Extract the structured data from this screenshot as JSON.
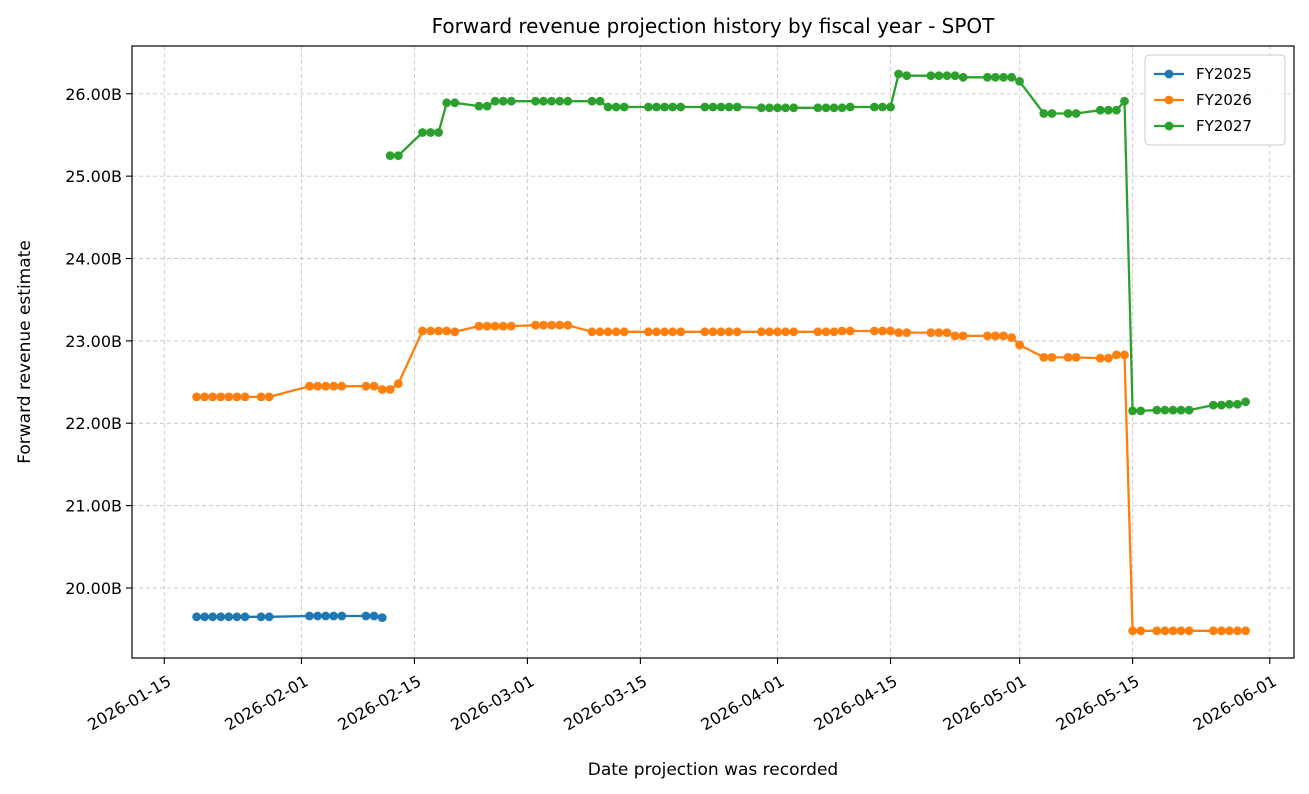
{
  "chart_data": {
    "type": "line",
    "title": "Forward revenue projection history by fiscal year - SPOT",
    "xlabel": "Date projection was recorded",
    "ylabel": "Forward revenue estimate",
    "x_axis_type": "date",
    "xlim": [
      "2026-01-11",
      "2026-06-04"
    ],
    "ylim": [
      19.15,
      26.58
    ],
    "x_ticks": [
      "2026-01-15",
      "2026-02-01",
      "2026-02-15",
      "2026-03-01",
      "2026-03-15",
      "2026-04-01",
      "2026-04-15",
      "2026-05-01",
      "2026-05-15",
      "2026-06-01"
    ],
    "y_ticks": [
      20,
      21,
      22,
      23,
      24,
      25,
      26
    ],
    "y_tick_labels": [
      "20.00B",
      "21.00B",
      "22.00B",
      "23.00B",
      "24.00B",
      "25.00B",
      "26.00B"
    ],
    "grid": true,
    "legend": "top-right",
    "series": [
      {
        "name": "FY2025",
        "color": "#1f77b4",
        "points": [
          [
            "2026-01-19",
            19.65
          ],
          [
            "2026-01-20",
            19.65
          ],
          [
            "2026-01-21",
            19.65
          ],
          [
            "2026-01-22",
            19.65
          ],
          [
            "2026-01-23",
            19.65
          ],
          [
            "2026-01-24",
            19.65
          ],
          [
            "2026-01-25",
            19.65
          ],
          [
            "2026-01-27",
            19.65
          ],
          [
            "2026-01-28",
            19.65
          ],
          [
            "2026-02-02",
            19.66
          ],
          [
            "2026-02-03",
            19.66
          ],
          [
            "2026-02-04",
            19.66
          ],
          [
            "2026-02-05",
            19.66
          ],
          [
            "2026-02-06",
            19.66
          ],
          [
            "2026-02-09",
            19.66
          ],
          [
            "2026-02-10",
            19.66
          ],
          [
            "2026-02-11",
            19.64
          ]
        ]
      },
      {
        "name": "FY2026",
        "color": "#ff7f0e",
        "points": [
          [
            "2026-01-19",
            22.32
          ],
          [
            "2026-01-20",
            22.32
          ],
          [
            "2026-01-21",
            22.32
          ],
          [
            "2026-01-22",
            22.32
          ],
          [
            "2026-01-23",
            22.32
          ],
          [
            "2026-01-24",
            22.32
          ],
          [
            "2026-01-25",
            22.32
          ],
          [
            "2026-01-27",
            22.32
          ],
          [
            "2026-01-28",
            22.32
          ],
          [
            "2026-02-02",
            22.45
          ],
          [
            "2026-02-03",
            22.45
          ],
          [
            "2026-02-04",
            22.45
          ],
          [
            "2026-02-05",
            22.45
          ],
          [
            "2026-02-06",
            22.45
          ],
          [
            "2026-02-09",
            22.45
          ],
          [
            "2026-02-10",
            22.45
          ],
          [
            "2026-02-11",
            22.41
          ],
          [
            "2026-02-12",
            22.41
          ],
          [
            "2026-02-13",
            22.48
          ],
          [
            "2026-02-16",
            23.12
          ],
          [
            "2026-02-17",
            23.12
          ],
          [
            "2026-02-18",
            23.12
          ],
          [
            "2026-02-19",
            23.12
          ],
          [
            "2026-02-20",
            23.11
          ],
          [
            "2026-02-23",
            23.18
          ],
          [
            "2026-02-24",
            23.18
          ],
          [
            "2026-02-25",
            23.18
          ],
          [
            "2026-02-26",
            23.18
          ],
          [
            "2026-02-27",
            23.18
          ],
          [
            "2026-03-02",
            23.19
          ],
          [
            "2026-03-03",
            23.19
          ],
          [
            "2026-03-04",
            23.19
          ],
          [
            "2026-03-05",
            23.19
          ],
          [
            "2026-03-06",
            23.19
          ],
          [
            "2026-03-09",
            23.11
          ],
          [
            "2026-03-10",
            23.11
          ],
          [
            "2026-03-11",
            23.11
          ],
          [
            "2026-03-12",
            23.11
          ],
          [
            "2026-03-13",
            23.11
          ],
          [
            "2026-03-16",
            23.11
          ],
          [
            "2026-03-17",
            23.11
          ],
          [
            "2026-03-18",
            23.11
          ],
          [
            "2026-03-19",
            23.11
          ],
          [
            "2026-03-20",
            23.11
          ],
          [
            "2026-03-23",
            23.11
          ],
          [
            "2026-03-24",
            23.11
          ],
          [
            "2026-03-25",
            23.11
          ],
          [
            "2026-03-26",
            23.11
          ],
          [
            "2026-03-27",
            23.11
          ],
          [
            "2026-03-30",
            23.11
          ],
          [
            "2026-03-31",
            23.11
          ],
          [
            "2026-04-01",
            23.11
          ],
          [
            "2026-04-02",
            23.11
          ],
          [
            "2026-04-03",
            23.11
          ],
          [
            "2026-04-06",
            23.11
          ],
          [
            "2026-04-07",
            23.11
          ],
          [
            "2026-04-08",
            23.11
          ],
          [
            "2026-04-09",
            23.12
          ],
          [
            "2026-04-10",
            23.12
          ],
          [
            "2026-04-13",
            23.12
          ],
          [
            "2026-04-14",
            23.12
          ],
          [
            "2026-04-15",
            23.12
          ],
          [
            "2026-04-16",
            23.1
          ],
          [
            "2026-04-17",
            23.1
          ],
          [
            "2026-04-20",
            23.1
          ],
          [
            "2026-04-21",
            23.1
          ],
          [
            "2026-04-22",
            23.1
          ],
          [
            "2026-04-23",
            23.06
          ],
          [
            "2026-04-24",
            23.06
          ],
          [
            "2026-04-27",
            23.06
          ],
          [
            "2026-04-28",
            23.06
          ],
          [
            "2026-04-29",
            23.06
          ],
          [
            "2026-04-30",
            23.04
          ],
          [
            "2026-05-01",
            22.95
          ],
          [
            "2026-05-04",
            22.8
          ],
          [
            "2026-05-05",
            22.8
          ],
          [
            "2026-05-07",
            22.8
          ],
          [
            "2026-05-08",
            22.8
          ],
          [
            "2026-05-11",
            22.79
          ],
          [
            "2026-05-12",
            22.79
          ],
          [
            "2026-05-13",
            22.83
          ],
          [
            "2026-05-14",
            22.83
          ],
          [
            "2026-05-15",
            19.48
          ],
          [
            "2026-05-16",
            19.48
          ],
          [
            "2026-05-18",
            19.48
          ],
          [
            "2026-05-19",
            19.48
          ],
          [
            "2026-05-20",
            19.48
          ],
          [
            "2026-05-21",
            19.48
          ],
          [
            "2026-05-22",
            19.48
          ],
          [
            "2026-05-25",
            19.48
          ],
          [
            "2026-05-26",
            19.48
          ],
          [
            "2026-05-27",
            19.48
          ],
          [
            "2026-05-28",
            19.48
          ],
          [
            "2026-05-29",
            19.48
          ]
        ]
      },
      {
        "name": "FY2027",
        "color": "#2ca02c",
        "points": [
          [
            "2026-02-12",
            25.25
          ],
          [
            "2026-02-13",
            25.25
          ],
          [
            "2026-02-16",
            25.53
          ],
          [
            "2026-02-17",
            25.53
          ],
          [
            "2026-02-18",
            25.53
          ],
          [
            "2026-02-19",
            25.89
          ],
          [
            "2026-02-20",
            25.89
          ],
          [
            "2026-02-23",
            25.85
          ],
          [
            "2026-02-24",
            25.85
          ],
          [
            "2026-02-25",
            25.91
          ],
          [
            "2026-02-26",
            25.91
          ],
          [
            "2026-02-27",
            25.91
          ],
          [
            "2026-03-02",
            25.91
          ],
          [
            "2026-03-03",
            25.91
          ],
          [
            "2026-03-04",
            25.91
          ],
          [
            "2026-03-05",
            25.91
          ],
          [
            "2026-03-06",
            25.91
          ],
          [
            "2026-03-09",
            25.91
          ],
          [
            "2026-03-10",
            25.91
          ],
          [
            "2026-03-11",
            25.84
          ],
          [
            "2026-03-12",
            25.84
          ],
          [
            "2026-03-13",
            25.84
          ],
          [
            "2026-03-16",
            25.84
          ],
          [
            "2026-03-17",
            25.84
          ],
          [
            "2026-03-18",
            25.84
          ],
          [
            "2026-03-19",
            25.84
          ],
          [
            "2026-03-20",
            25.84
          ],
          [
            "2026-03-23",
            25.84
          ],
          [
            "2026-03-24",
            25.84
          ],
          [
            "2026-03-25",
            25.84
          ],
          [
            "2026-03-26",
            25.84
          ],
          [
            "2026-03-27",
            25.84
          ],
          [
            "2026-03-30",
            25.83
          ],
          [
            "2026-03-31",
            25.83
          ],
          [
            "2026-04-01",
            25.83
          ],
          [
            "2026-04-02",
            25.83
          ],
          [
            "2026-04-03",
            25.83
          ],
          [
            "2026-04-06",
            25.83
          ],
          [
            "2026-04-07",
            25.83
          ],
          [
            "2026-04-08",
            25.83
          ],
          [
            "2026-04-09",
            25.83
          ],
          [
            "2026-04-10",
            25.84
          ],
          [
            "2026-04-13",
            25.84
          ],
          [
            "2026-04-14",
            25.84
          ],
          [
            "2026-04-15",
            25.84
          ],
          [
            "2026-04-16",
            26.24
          ],
          [
            "2026-04-17",
            26.22
          ],
          [
            "2026-04-20",
            26.22
          ],
          [
            "2026-04-21",
            26.22
          ],
          [
            "2026-04-22",
            26.22
          ],
          [
            "2026-04-23",
            26.22
          ],
          [
            "2026-04-24",
            26.2
          ],
          [
            "2026-04-27",
            26.2
          ],
          [
            "2026-04-28",
            26.2
          ],
          [
            "2026-04-29",
            26.2
          ],
          [
            "2026-04-30",
            26.2
          ],
          [
            "2026-05-01",
            26.15
          ],
          [
            "2026-05-04",
            25.76
          ],
          [
            "2026-05-05",
            25.76
          ],
          [
            "2026-05-07",
            25.76
          ],
          [
            "2026-05-08",
            25.76
          ],
          [
            "2026-05-11",
            25.8
          ],
          [
            "2026-05-12",
            25.8
          ],
          [
            "2026-05-13",
            25.8
          ],
          [
            "2026-05-14",
            25.91
          ],
          [
            "2026-05-15",
            22.15
          ],
          [
            "2026-05-16",
            22.15
          ],
          [
            "2026-05-18",
            22.16
          ],
          [
            "2026-05-19",
            22.16
          ],
          [
            "2026-05-20",
            22.16
          ],
          [
            "2026-05-21",
            22.16
          ],
          [
            "2026-05-22",
            22.16
          ],
          [
            "2026-05-25",
            22.22
          ],
          [
            "2026-05-26",
            22.22
          ],
          [
            "2026-05-27",
            22.23
          ],
          [
            "2026-05-28",
            22.23
          ],
          [
            "2026-05-29",
            22.26
          ]
        ]
      }
    ]
  }
}
